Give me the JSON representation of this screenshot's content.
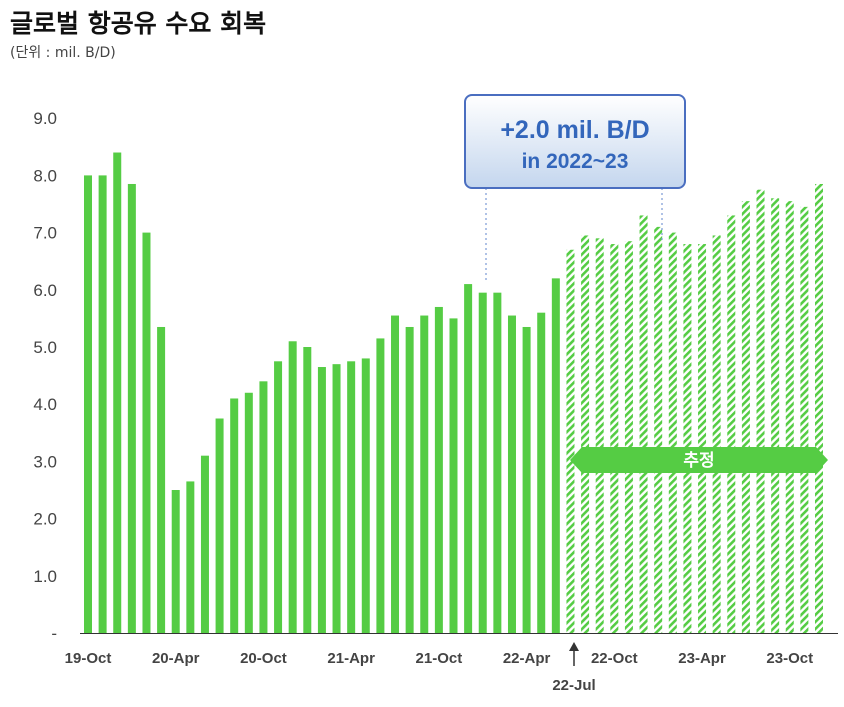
{
  "title": "글로벌 항공유 수요 회복",
  "subtitle": "(단위 : mil. B/D)",
  "colors": {
    "bar": "#55cc44",
    "bar_forecast": "#55cc44",
    "axis": "#333333",
    "callout_text": "#3366bb",
    "callout_border": "#4a6ec0",
    "label_bar": "#55cc44"
  },
  "chart_data": {
    "type": "bar",
    "title": "글로벌 항공유 수요 회복",
    "ylabel": "",
    "xlabel": "",
    "ylim": [
      0,
      9.0
    ],
    "yticks": [
      "-",
      "1.0",
      "2.0",
      "3.0",
      "4.0",
      "5.0",
      "6.0",
      "7.0",
      "8.0",
      "9.0"
    ],
    "x_tick_labels": [
      {
        "label": "19-Oct",
        "index": 0
      },
      {
        "label": "20-Apr",
        "index": 6
      },
      {
        "label": "20-Oct",
        "index": 12
      },
      {
        "label": "21-Apr",
        "index": 18
      },
      {
        "label": "21-Oct",
        "index": 24
      },
      {
        "label": "22-Apr",
        "index": 30
      },
      {
        "label": "22-Oct",
        "index": 36
      },
      {
        "label": "23-Apr",
        "index": 42
      },
      {
        "label": "23-Oct",
        "index": 48
      }
    ],
    "months": [
      "19-Oct",
      "19-Nov",
      "19-Dec",
      "20-Jan",
      "20-Feb",
      "20-Mar",
      "20-Apr",
      "20-May",
      "20-Jun",
      "20-Jul",
      "20-Aug",
      "20-Sep",
      "20-Oct",
      "20-Nov",
      "20-Dec",
      "21-Jan",
      "21-Feb",
      "21-Mar",
      "21-Apr",
      "21-May",
      "21-Jun",
      "21-Jul",
      "21-Aug",
      "21-Sep",
      "21-Oct",
      "21-Nov",
      "21-Dec",
      "22-Jan",
      "22-Feb",
      "22-Mar",
      "22-Apr",
      "22-May",
      "22-Jun",
      "22-Jul",
      "22-Aug",
      "22-Sep",
      "22-Oct",
      "22-Nov",
      "22-Dec",
      "23-Jan",
      "23-Feb",
      "23-Mar",
      "23-Apr",
      "23-May",
      "23-Jun",
      "23-Jul",
      "23-Aug",
      "23-Sep",
      "23-Oct",
      "23-Nov",
      "23-Dec"
    ],
    "actual_values": [
      8.0,
      8.0,
      8.4,
      7.85,
      7.0,
      5.35,
      2.5,
      2.65,
      3.1,
      3.75,
      4.1,
      4.2,
      4.4,
      4.75,
      5.1,
      5.0,
      4.65,
      4.7,
      4.75,
      4.8,
      5.15,
      5.55,
      5.35,
      5.55,
      5.7,
      5.5,
      6.1,
      5.95,
      5.95,
      5.55,
      5.35,
      5.6,
      6.2
    ],
    "forecast_values": [
      6.7,
      6.95,
      6.9,
      6.8,
      6.85,
      7.3,
      7.1,
      7.0,
      6.8,
      6.8,
      6.95,
      7.3,
      7.55,
      7.75,
      7.6,
      7.55,
      7.45,
      7.85
    ],
    "forecast_label": "추정",
    "marker_label": "22-Jul",
    "callout": {
      "line1": "+2.0 mil. B/D",
      "line2": "in 2022~23"
    }
  }
}
